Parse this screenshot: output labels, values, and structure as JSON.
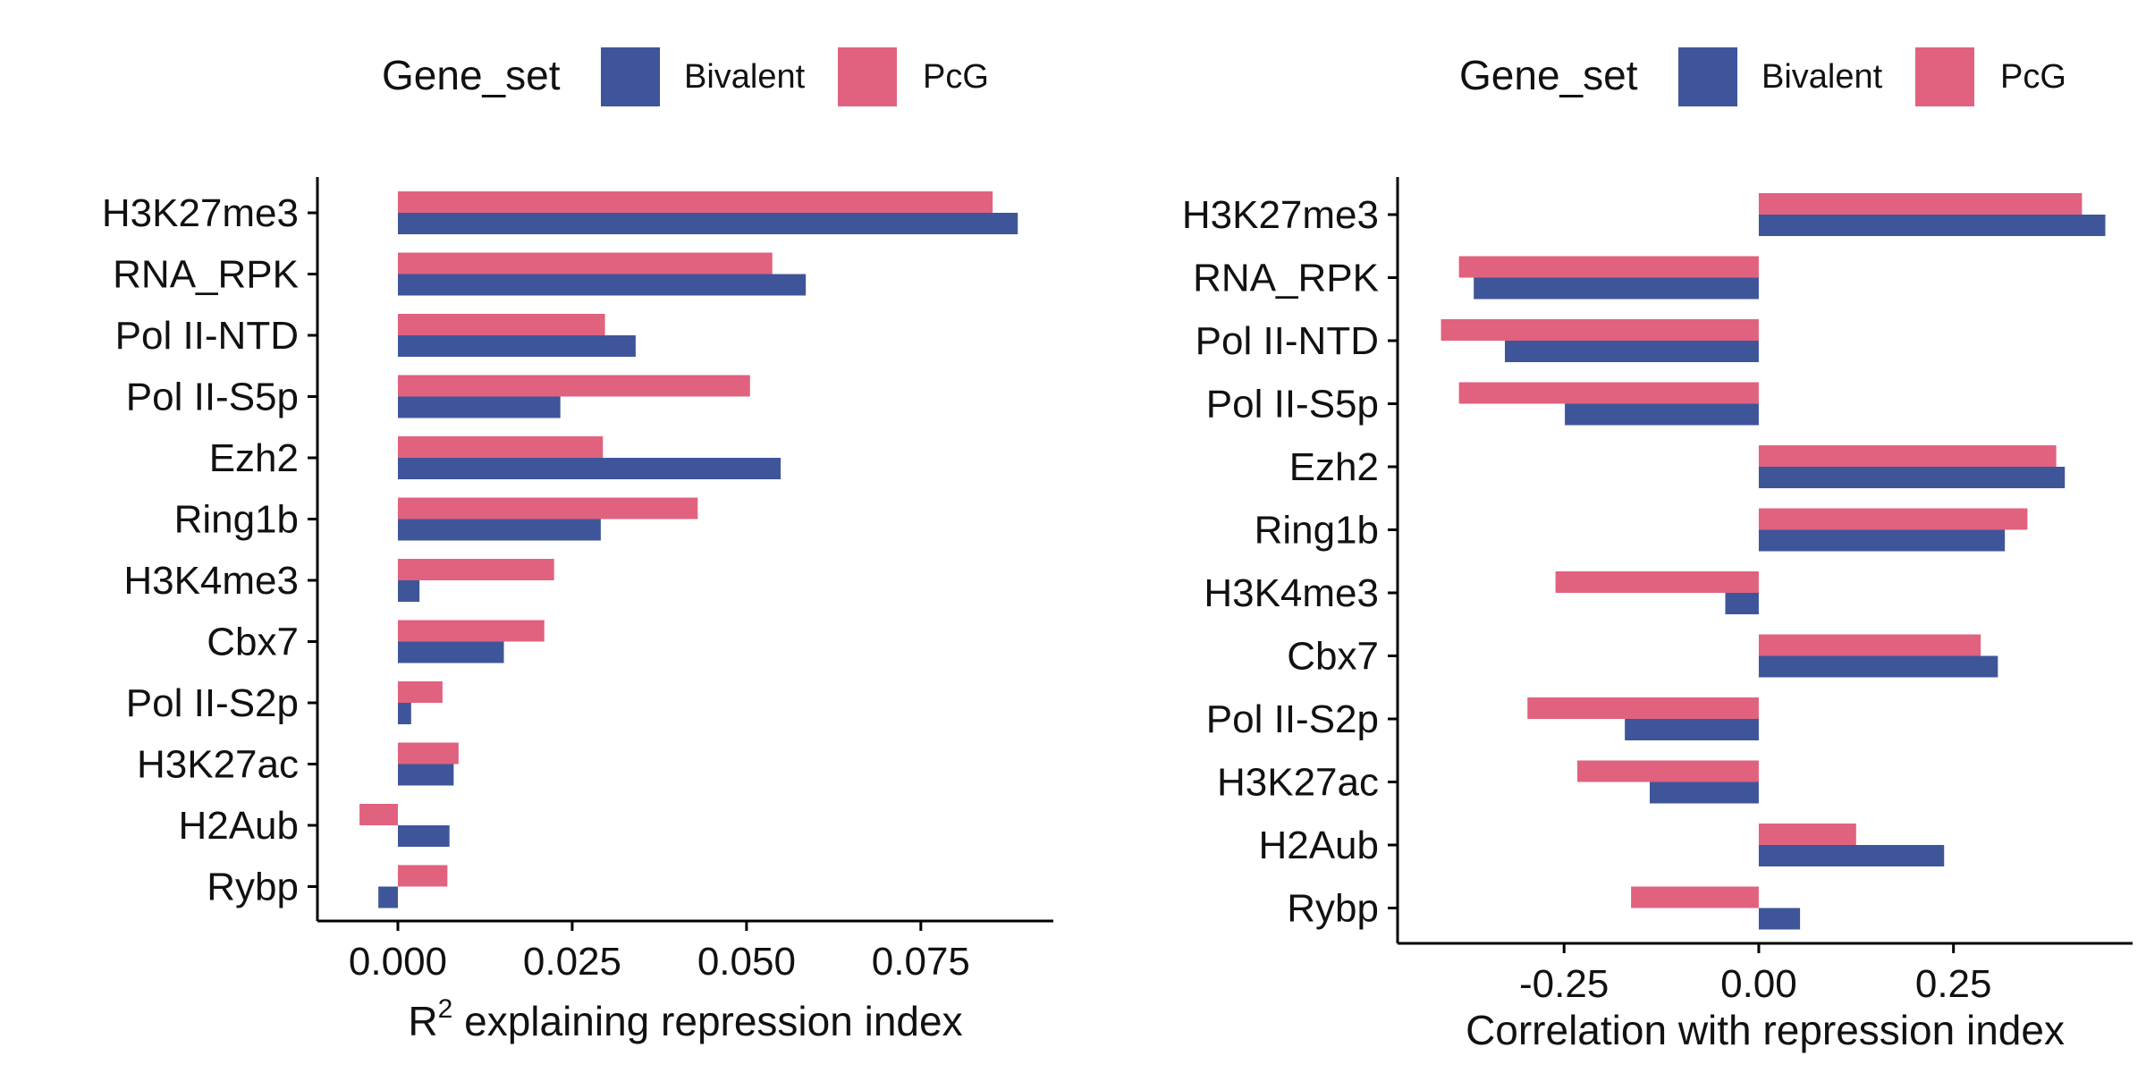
{
  "colors": {
    "bivalent": "#3F559A",
    "pcg": "#E0627F",
    "axis": "#000000",
    "text": "#111111"
  },
  "chart_data": [
    {
      "type": "bar",
      "orientation": "horizontal",
      "legend": {
        "title": "Gene_set",
        "position": "top",
        "entries": [
          "Bivalent",
          "PcG"
        ]
      },
      "xlabel": {
        "main": "R",
        "superscript": "2",
        "rest": " explaining repression index"
      },
      "xlim": [
        -0.01,
        0.094
      ],
      "xticks": [
        0.0,
        0.025,
        0.05,
        0.075
      ],
      "xtick_labels": [
        "0.000",
        "0.025",
        "0.050",
        "0.075"
      ],
      "categories": [
        "H3K27me3",
        "RNA_RPK",
        "Pol II-NTD",
        "Pol II-S5p",
        "Ezh2",
        "Ring1b",
        "H3K4me3",
        "Cbx7",
        "Pol II-S2p",
        "H3K27ac",
        "H2Aub",
        "Rybp"
      ],
      "series": [
        {
          "name": "PcG",
          "color_key": "pcg",
          "values": [
            0.0853,
            0.0537,
            0.0297,
            0.0505,
            0.0294,
            0.043,
            0.0224,
            0.021,
            0.0064,
            0.0087,
            -0.0055,
            0.0071
          ]
        },
        {
          "name": "Bivalent",
          "color_key": "bivalent",
          "values": [
            0.0889,
            0.0585,
            0.0341,
            0.0233,
            0.0549,
            0.0291,
            0.0031,
            0.0152,
            0.0019,
            0.008,
            0.0074,
            -0.0028
          ]
        }
      ]
    },
    {
      "type": "bar",
      "orientation": "horizontal",
      "legend": {
        "title": "Gene_set",
        "position": "top",
        "entries": [
          "Bivalent",
          "PcG"
        ]
      },
      "xlabel": {
        "main": "Correlation with repression index",
        "superscript": "",
        "rest": ""
      },
      "xlim": [
        -0.45,
        0.48
      ],
      "xticks": [
        -0.25,
        0.0,
        0.25
      ],
      "xtick_labels": [
        "-0.25",
        "0.00",
        "0.25"
      ],
      "categories": [
        "H3K27me3",
        "RNA_RPK",
        "Pol II-NTD",
        "Pol II-S5p",
        "Ezh2",
        "Ring1b",
        "H3K4me3",
        "Cbx7",
        "Pol II-S2p",
        "H3K27ac",
        "H2Aub",
        "Rybp"
      ],
      "series": [
        {
          "name": "PcG",
          "color_key": "pcg",
          "values": [
            0.415,
            -0.385,
            -0.408,
            -0.385,
            0.382,
            0.345,
            -0.261,
            0.285,
            -0.297,
            -0.233,
            0.125,
            -0.164
          ]
        },
        {
          "name": "Bivalent",
          "color_key": "bivalent",
          "values": [
            0.445,
            -0.366,
            -0.326,
            -0.249,
            0.393,
            0.316,
            -0.043,
            0.307,
            -0.172,
            -0.14,
            0.238,
            0.053
          ]
        }
      ]
    }
  ]
}
